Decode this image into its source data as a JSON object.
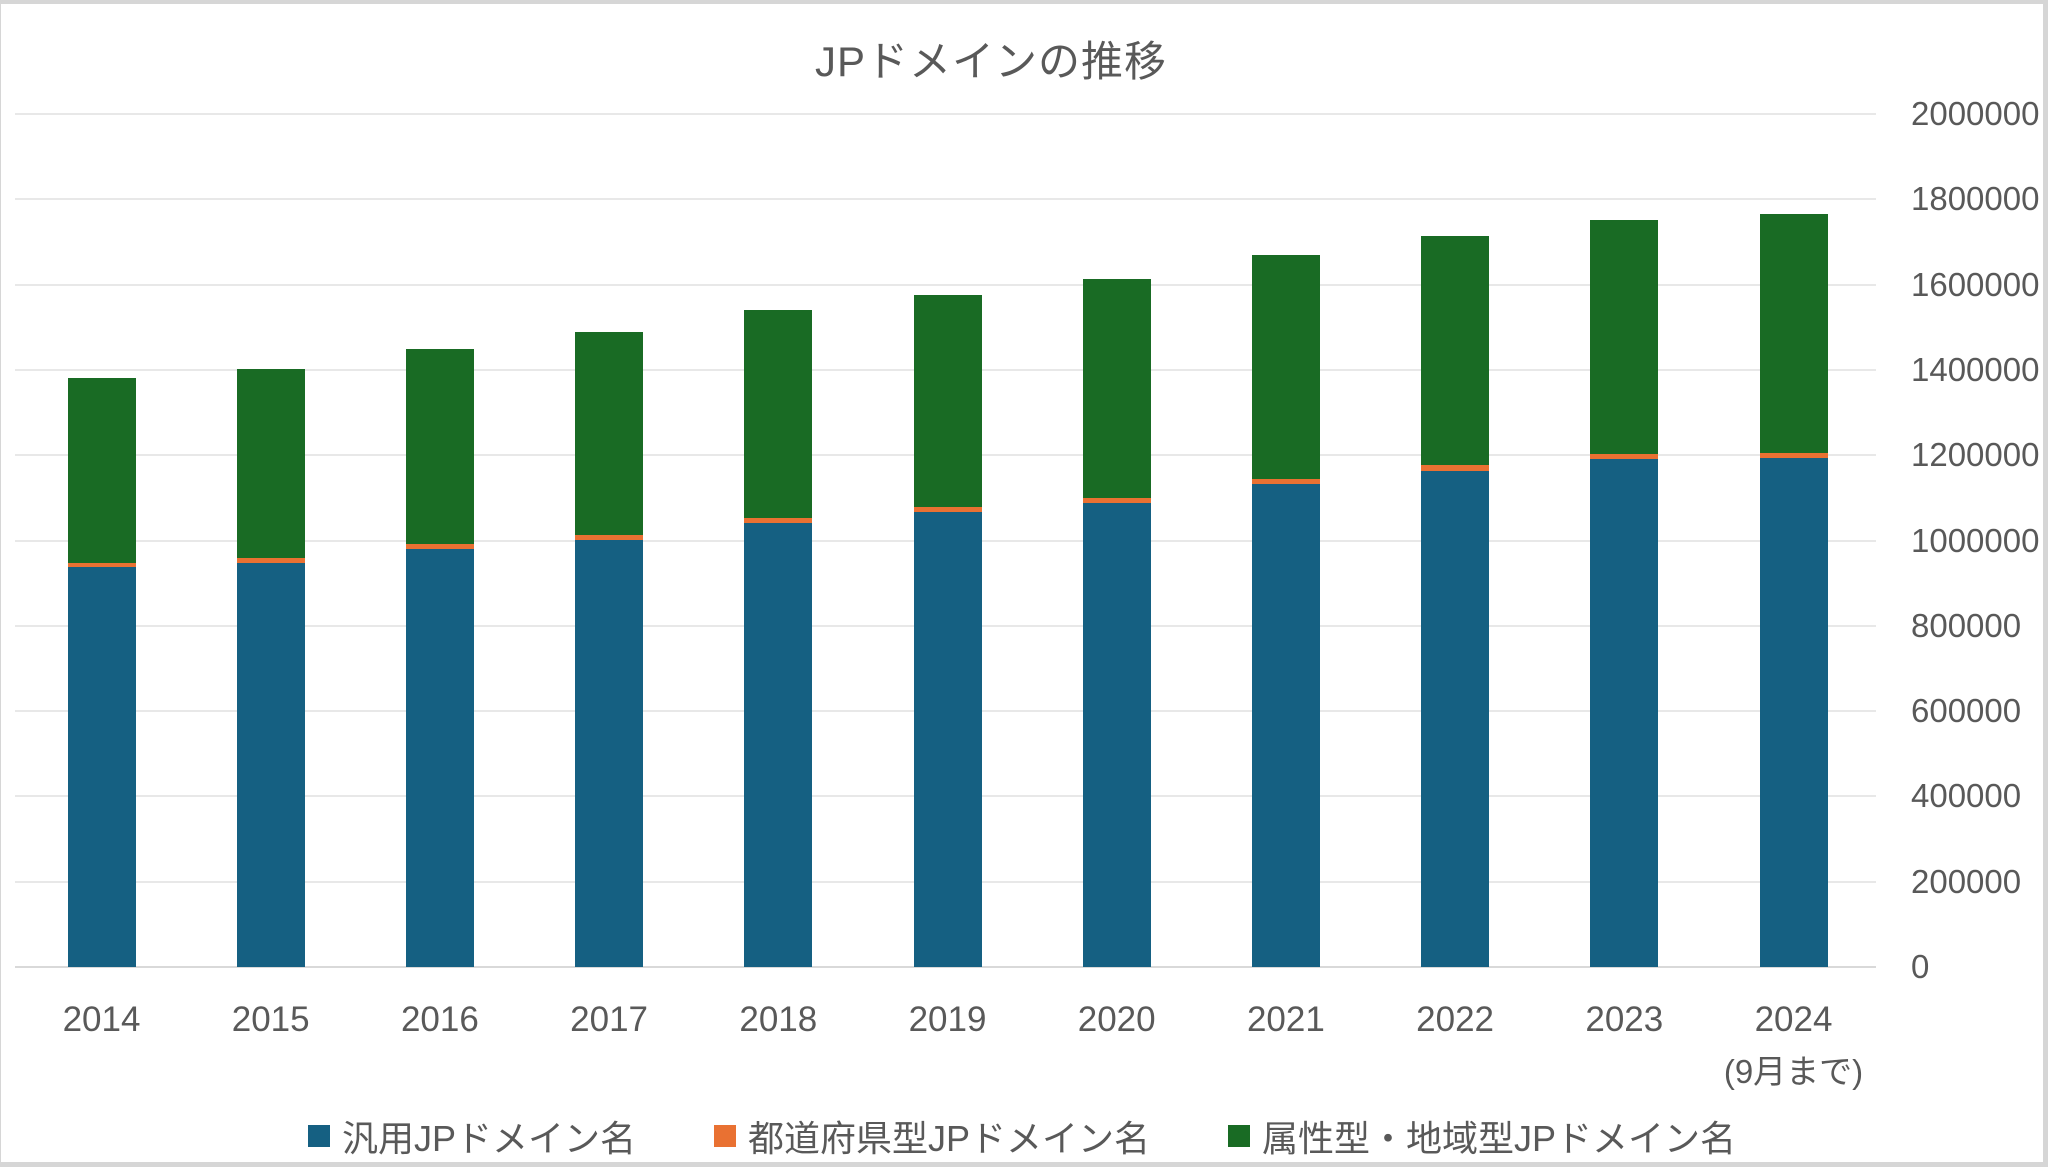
{
  "title": "JPドメインの推移",
  "x_axis": {
    "categories": [
      "2014",
      "2015",
      "2016",
      "2017",
      "2018",
      "2019",
      "2020",
      "2021",
      "2022",
      "2023",
      "2024"
    ],
    "note_under_last": "(9月まで)"
  },
  "y_axis": {
    "position": "right",
    "min": 0,
    "max": 2000000,
    "step": 200000,
    "tick_labels": [
      "0",
      "200000",
      "400000",
      "600000",
      "800000",
      "1000000",
      "1200000",
      "1400000",
      "1600000",
      "1800000",
      "2000000"
    ]
  },
  "legend": {
    "position": "bottom",
    "items": [
      {
        "label": "汎用JPドメイン名",
        "color": "#156082"
      },
      {
        "label": "都道府県型JPドメイン名",
        "color": "#E97132"
      },
      {
        "label": "属性型・地域型JPドメイン名",
        "color": "#196B24"
      }
    ]
  },
  "colors": {
    "text": "#595959",
    "gridline": "#E8E8E8",
    "axis_line": "#D9D9D9",
    "frame": "#D6D6D6",
    "background": "#FFFFFF"
  },
  "chart_data": {
    "type": "bar",
    "stacked": true,
    "title": "JPドメインの推移",
    "categories": [
      "2014",
      "2015",
      "2016",
      "2017",
      "2018",
      "2019",
      "2020",
      "2021",
      "2022",
      "2023",
      "2024"
    ],
    "x_note": "(9月まで)",
    "series": [
      {
        "name": "汎用JPドメイン名",
        "color": "#156082",
        "values": [
          937000,
          947000,
          980000,
          1002000,
          1041000,
          1066000,
          1089000,
          1132000,
          1164000,
          1191000,
          1193000
        ]
      },
      {
        "name": "都道府県型JPドメイン名",
        "color": "#E97132",
        "values": [
          11000,
          11000,
          12000,
          11000,
          12000,
          12000,
          11000,
          12000,
          12000,
          12000,
          13000
        ]
      },
      {
        "name": "属性型・地域型JPドメイン名",
        "color": "#196B24",
        "values": [
          434000,
          445000,
          456000,
          475000,
          487000,
          497000,
          512000,
          525000,
          538000,
          549000,
          560000
        ]
      }
    ],
    "totals": [
      1382000,
      1403000,
      1448000,
      1488000,
      1540000,
      1575000,
      1612000,
      1669000,
      1714000,
      1752000,
      1766000
    ],
    "ylim": [
      0,
      2000000
    ],
    "grid": "horizontal",
    "legend_position": "bottom",
    "y_axis_side": "right"
  }
}
